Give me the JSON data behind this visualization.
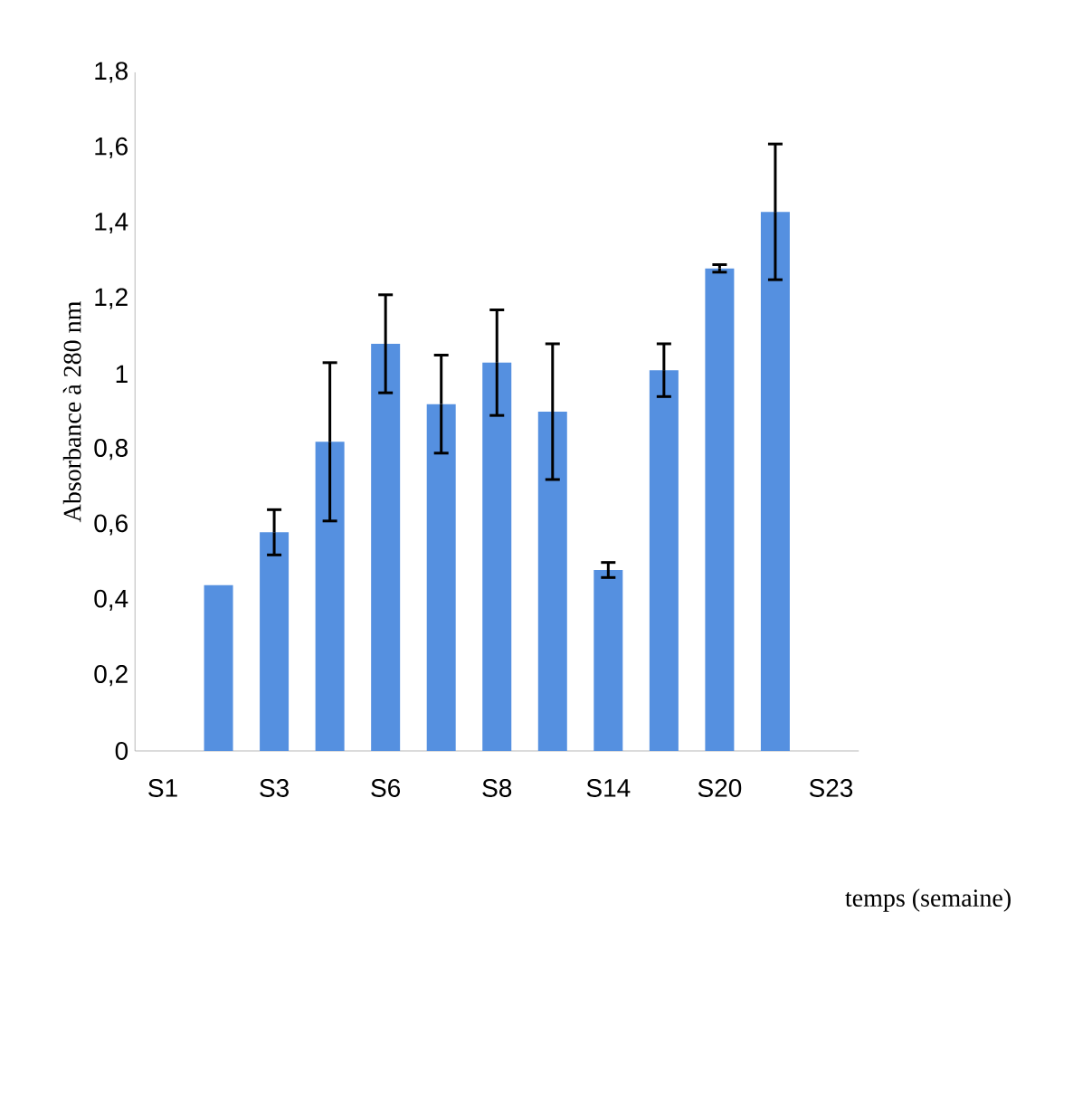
{
  "chart_data": {
    "type": "bar",
    "ylabel": "Absorbance à 280 nm",
    "xlabel": "temps (semaine)",
    "categories": [
      "S1",
      null,
      "S3",
      null,
      "S6",
      null,
      "S8",
      null,
      "S14",
      null,
      "S20",
      null,
      "S23"
    ],
    "values": [
      null,
      0.44,
      0.58,
      0.82,
      1.08,
      0.92,
      1.03,
      0.9,
      0.48,
      1.01,
      1.28,
      1.43,
      null
    ],
    "errors": [
      null,
      null,
      0.06,
      0.21,
      0.13,
      0.13,
      0.14,
      0.18,
      0.02,
      0.07,
      0.01,
      0.18,
      null
    ],
    "color": "#5590e0",
    "ylim": [
      0,
      1.8
    ],
    "yticks": [
      0,
      {
        "value": 0.2,
        "label": "0,2"
      },
      {
        "value": 0.4,
        "label": "0,4"
      },
      {
        "value": 0.6,
        "label": "0,6"
      },
      {
        "value": 0.8,
        "label": "0,8"
      },
      1,
      {
        "value": 1.2,
        "label": "1,2"
      },
      {
        "value": 1.4,
        "label": "1,4"
      },
      {
        "value": 1.6,
        "label": "1,6"
      },
      {
        "value": 1.8,
        "label": "1,8"
      }
    ],
    "grid": false
  }
}
